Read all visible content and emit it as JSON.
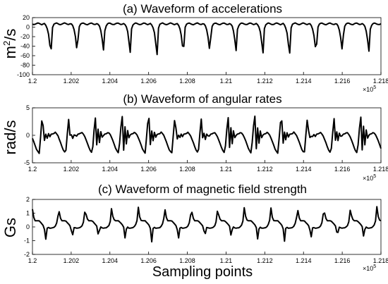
{
  "chart_data": [
    {
      "type": "line",
      "title": "(a) Waveform of accelerations",
      "ylabel": "m²/s",
      "ylabel_base": "m",
      "ylabel_sup": "2",
      "ylabel_rest": "/s",
      "xlabel": "",
      "xlim": [
        1.2,
        1.218
      ],
      "ylim": [
        -100,
        20
      ],
      "x_ticks": [
        "1.2",
        "1.202",
        "1.204",
        "1.206",
        "1.208",
        "1.21",
        "1.212",
        "1.214",
        "1.216",
        "1.218"
      ],
      "y_ticks": [
        "20",
        "0",
        "-20",
        "-40",
        "-60",
        "-80",
        "-100"
      ],
      "x_multiplier": "×10",
      "x_multiplier_exp": "5",
      "period": 0.00137,
      "phase": 1.20048,
      "pattern": [
        [
          0,
          5
        ],
        [
          0.1,
          8
        ],
        [
          0.18,
          2
        ],
        [
          0.25,
          -12
        ],
        [
          0.31,
          -40
        ],
        [
          0.35,
          -58
        ],
        [
          0.38,
          -5
        ],
        [
          0.45,
          6
        ],
        [
          0.55,
          9
        ],
        [
          0.65,
          6
        ],
        [
          0.72,
          5
        ],
        [
          0.78,
          7
        ],
        [
          0.86,
          9
        ],
        [
          0.93,
          7
        ],
        [
          1.0,
          5
        ]
      ],
      "series": [
        {
          "values": []
        }
      ]
    },
    {
      "type": "line",
      "title": "(b) Waveform of angular rates",
      "ylabel": "rad/s",
      "xlabel": "",
      "xlim": [
        1.2,
        1.218
      ],
      "ylim": [
        -5,
        5
      ],
      "x_ticks": [
        "1.2",
        "1.202",
        "1.204",
        "1.206",
        "1.208",
        "1.21",
        "1.212",
        "1.214",
        "1.216",
        "1.218"
      ],
      "y_ticks": [
        "5",
        "0",
        "-5"
      ],
      "x_multiplier": "×10",
      "x_multiplier_exp": "5",
      "period": 0.00137,
      "phase": 1.20021,
      "pattern": [
        [
          0,
          -2.6
        ],
        [
          0.1,
          -3.3
        ],
        [
          0.2,
          2.6
        ],
        [
          0.24,
          3.6
        ],
        [
          0.28,
          -3.0
        ],
        [
          0.33,
          1.8
        ],
        [
          0.38,
          -1.8
        ],
        [
          0.43,
          1.0
        ],
        [
          0.48,
          -0.5
        ],
        [
          0.55,
          0.2
        ],
        [
          0.65,
          0.3
        ],
        [
          0.7,
          0.6
        ],
        [
          0.8,
          0.0
        ],
        [
          0.9,
          -1.2
        ],
        [
          1.0,
          -2.6
        ]
      ],
      "series": [
        {
          "values": []
        }
      ]
    },
    {
      "type": "line",
      "title": "(c) Waveform of magnetic field strength",
      "ylabel": "Gs",
      "xlabel": "Sampling points",
      "xlim": [
        1.2,
        1.218
      ],
      "ylim": [
        -2,
        2
      ],
      "x_ticks": [
        "1.2",
        "1.202",
        "1.204",
        "1.206",
        "1.208",
        "1.21",
        "1.212",
        "1.214",
        "1.216",
        "1.218"
      ],
      "y_ticks": [
        "2",
        "1",
        "0",
        "-1",
        "-2"
      ],
      "x_multiplier": "×10",
      "x_multiplier_exp": "5",
      "period": 0.00137,
      "phase": 1.20034,
      "pattern": [
        [
          0,
          0.45
        ],
        [
          0.12,
          0.2
        ],
        [
          0.18,
          0.05
        ],
        [
          0.22,
          -0.3
        ],
        [
          0.25,
          -1.1
        ],
        [
          0.28,
          -0.2
        ],
        [
          0.33,
          0.0
        ],
        [
          0.4,
          -0.1
        ],
        [
          0.55,
          -0.05
        ],
        [
          0.63,
          0.1
        ],
        [
          0.7,
          0.5
        ],
        [
          0.74,
          1.5
        ],
        [
          0.78,
          0.8
        ],
        [
          0.85,
          0.45
        ],
        [
          1.0,
          0.45
        ]
      ],
      "series": [
        {
          "values": []
        }
      ]
    }
  ]
}
